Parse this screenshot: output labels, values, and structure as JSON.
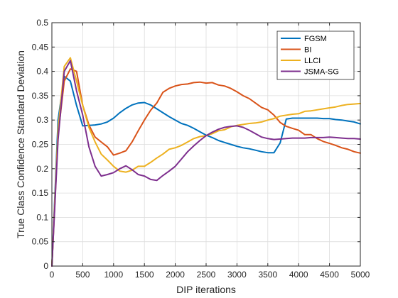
{
  "chart_data": {
    "type": "line",
    "xlabel": "DIP iterations",
    "ylabel": "True Class Confidence Standard Deviation",
    "xlim": [
      0,
      5000
    ],
    "ylim": [
      0,
      0.5
    ],
    "xticks": [
      "0",
      "500",
      "1000",
      "1500",
      "2000",
      "2500",
      "3000",
      "3500",
      "4000",
      "4500",
      "5000"
    ],
    "yticks": [
      "0",
      "0.05",
      "0.1",
      "0.15",
      "0.2",
      "0.25",
      "0.3",
      "0.35",
      "0.4",
      "0.45",
      "0.5"
    ],
    "grid": true,
    "legend_position": "top-right",
    "series": [
      {
        "name": "FGSM",
        "color": "#0072BD",
        "x": [
          0,
          100,
          200,
          300,
          400,
          500,
          600,
          700,
          800,
          900,
          1000,
          1100,
          1200,
          1300,
          1400,
          1500,
          1600,
          1700,
          1800,
          1900,
          2000,
          2100,
          2200,
          2300,
          2400,
          2500,
          2600,
          2700,
          2800,
          2900,
          3000,
          3100,
          3200,
          3300,
          3400,
          3500,
          3600,
          3700,
          3800,
          3900,
          4000,
          4100,
          4200,
          4300,
          4400,
          4500,
          4600,
          4700,
          4800,
          4900,
          5000
        ],
        "y": [
          0,
          0.3,
          0.39,
          0.38,
          0.33,
          0.288,
          0.289,
          0.29,
          0.292,
          0.296,
          0.304,
          0.315,
          0.324,
          0.331,
          0.335,
          0.336,
          0.331,
          0.323,
          0.315,
          0.307,
          0.3,
          0.293,
          0.289,
          0.283,
          0.276,
          0.269,
          0.264,
          0.258,
          0.254,
          0.25,
          0.246,
          0.243,
          0.241,
          0.238,
          0.235,
          0.233,
          0.233,
          0.253,
          0.302,
          0.304,
          0.304,
          0.304,
          0.304,
          0.304,
          0.303,
          0.303,
          0.301,
          0.3,
          0.298,
          0.296,
          0.292
        ]
      },
      {
        "name": "BI",
        "color": "#D95319",
        "x": [
          0,
          100,
          200,
          300,
          400,
          500,
          600,
          700,
          800,
          900,
          1000,
          1100,
          1200,
          1300,
          1400,
          1500,
          1600,
          1700,
          1800,
          1900,
          2000,
          2100,
          2200,
          2300,
          2400,
          2500,
          2600,
          2700,
          2800,
          2900,
          3000,
          3100,
          3200,
          3300,
          3400,
          3500,
          3600,
          3700,
          3800,
          3900,
          4000,
          4100,
          4200,
          4300,
          4400,
          4500,
          4600,
          4700,
          4800,
          4900,
          5000
        ],
        "y": [
          0,
          0.27,
          0.38,
          0.405,
          0.4,
          0.33,
          0.29,
          0.265,
          0.255,
          0.245,
          0.228,
          0.232,
          0.237,
          0.255,
          0.278,
          0.3,
          0.32,
          0.335,
          0.357,
          0.365,
          0.37,
          0.373,
          0.374,
          0.377,
          0.378,
          0.376,
          0.377,
          0.372,
          0.37,
          0.365,
          0.358,
          0.35,
          0.344,
          0.335,
          0.326,
          0.321,
          0.31,
          0.295,
          0.287,
          0.283,
          0.279,
          0.27,
          0.27,
          0.262,
          0.256,
          0.252,
          0.248,
          0.243,
          0.24,
          0.235,
          0.232
        ]
      },
      {
        "name": "LLCI",
        "color": "#EDB120",
        "x": [
          0,
          100,
          200,
          300,
          400,
          500,
          600,
          700,
          800,
          900,
          1000,
          1100,
          1200,
          1300,
          1400,
          1500,
          1600,
          1700,
          1800,
          1900,
          2000,
          2100,
          2200,
          2300,
          2400,
          2500,
          2600,
          2700,
          2800,
          2900,
          3000,
          3100,
          3200,
          3300,
          3400,
          3500,
          3600,
          3700,
          3800,
          3900,
          4000,
          4100,
          4200,
          4300,
          4400,
          4500,
          4600,
          4700,
          4800,
          4900,
          5000
        ],
        "y": [
          0,
          0.28,
          0.41,
          0.428,
          0.38,
          0.33,
          0.285,
          0.255,
          0.23,
          0.218,
          0.205,
          0.195,
          0.193,
          0.197,
          0.205,
          0.205,
          0.213,
          0.222,
          0.23,
          0.24,
          0.243,
          0.248,
          0.255,
          0.262,
          0.266,
          0.268,
          0.272,
          0.278,
          0.28,
          0.286,
          0.289,
          0.291,
          0.293,
          0.294,
          0.296,
          0.3,
          0.303,
          0.308,
          0.31,
          0.312,
          0.313,
          0.318,
          0.319,
          0.321,
          0.323,
          0.325,
          0.327,
          0.33,
          0.332,
          0.333,
          0.334
        ]
      },
      {
        "name": "JSMA-SG",
        "color": "#7E2F8E",
        "x": [
          0,
          100,
          200,
          300,
          400,
          500,
          600,
          700,
          800,
          900,
          1000,
          1100,
          1200,
          1300,
          1400,
          1500,
          1600,
          1700,
          1800,
          1900,
          2000,
          2100,
          2200,
          2300,
          2400,
          2500,
          2600,
          2700,
          2800,
          2900,
          3000,
          3100,
          3200,
          3300,
          3400,
          3500,
          3600,
          3700,
          3800,
          3900,
          4000,
          4100,
          4200,
          4300,
          4400,
          4500,
          4600,
          4700,
          4800,
          4900,
          5000
        ],
        "y": [
          0,
          0.26,
          0.4,
          0.422,
          0.36,
          0.31,
          0.245,
          0.205,
          0.185,
          0.188,
          0.192,
          0.2,
          0.206,
          0.198,
          0.188,
          0.185,
          0.178,
          0.176,
          0.186,
          0.195,
          0.205,
          0.22,
          0.235,
          0.247,
          0.258,
          0.268,
          0.275,
          0.281,
          0.285,
          0.287,
          0.288,
          0.285,
          0.279,
          0.272,
          0.265,
          0.262,
          0.26,
          0.261,
          0.262,
          0.263,
          0.263,
          0.263,
          0.264,
          0.264,
          0.264,
          0.265,
          0.264,
          0.263,
          0.262,
          0.262,
          0.261
        ]
      }
    ]
  }
}
